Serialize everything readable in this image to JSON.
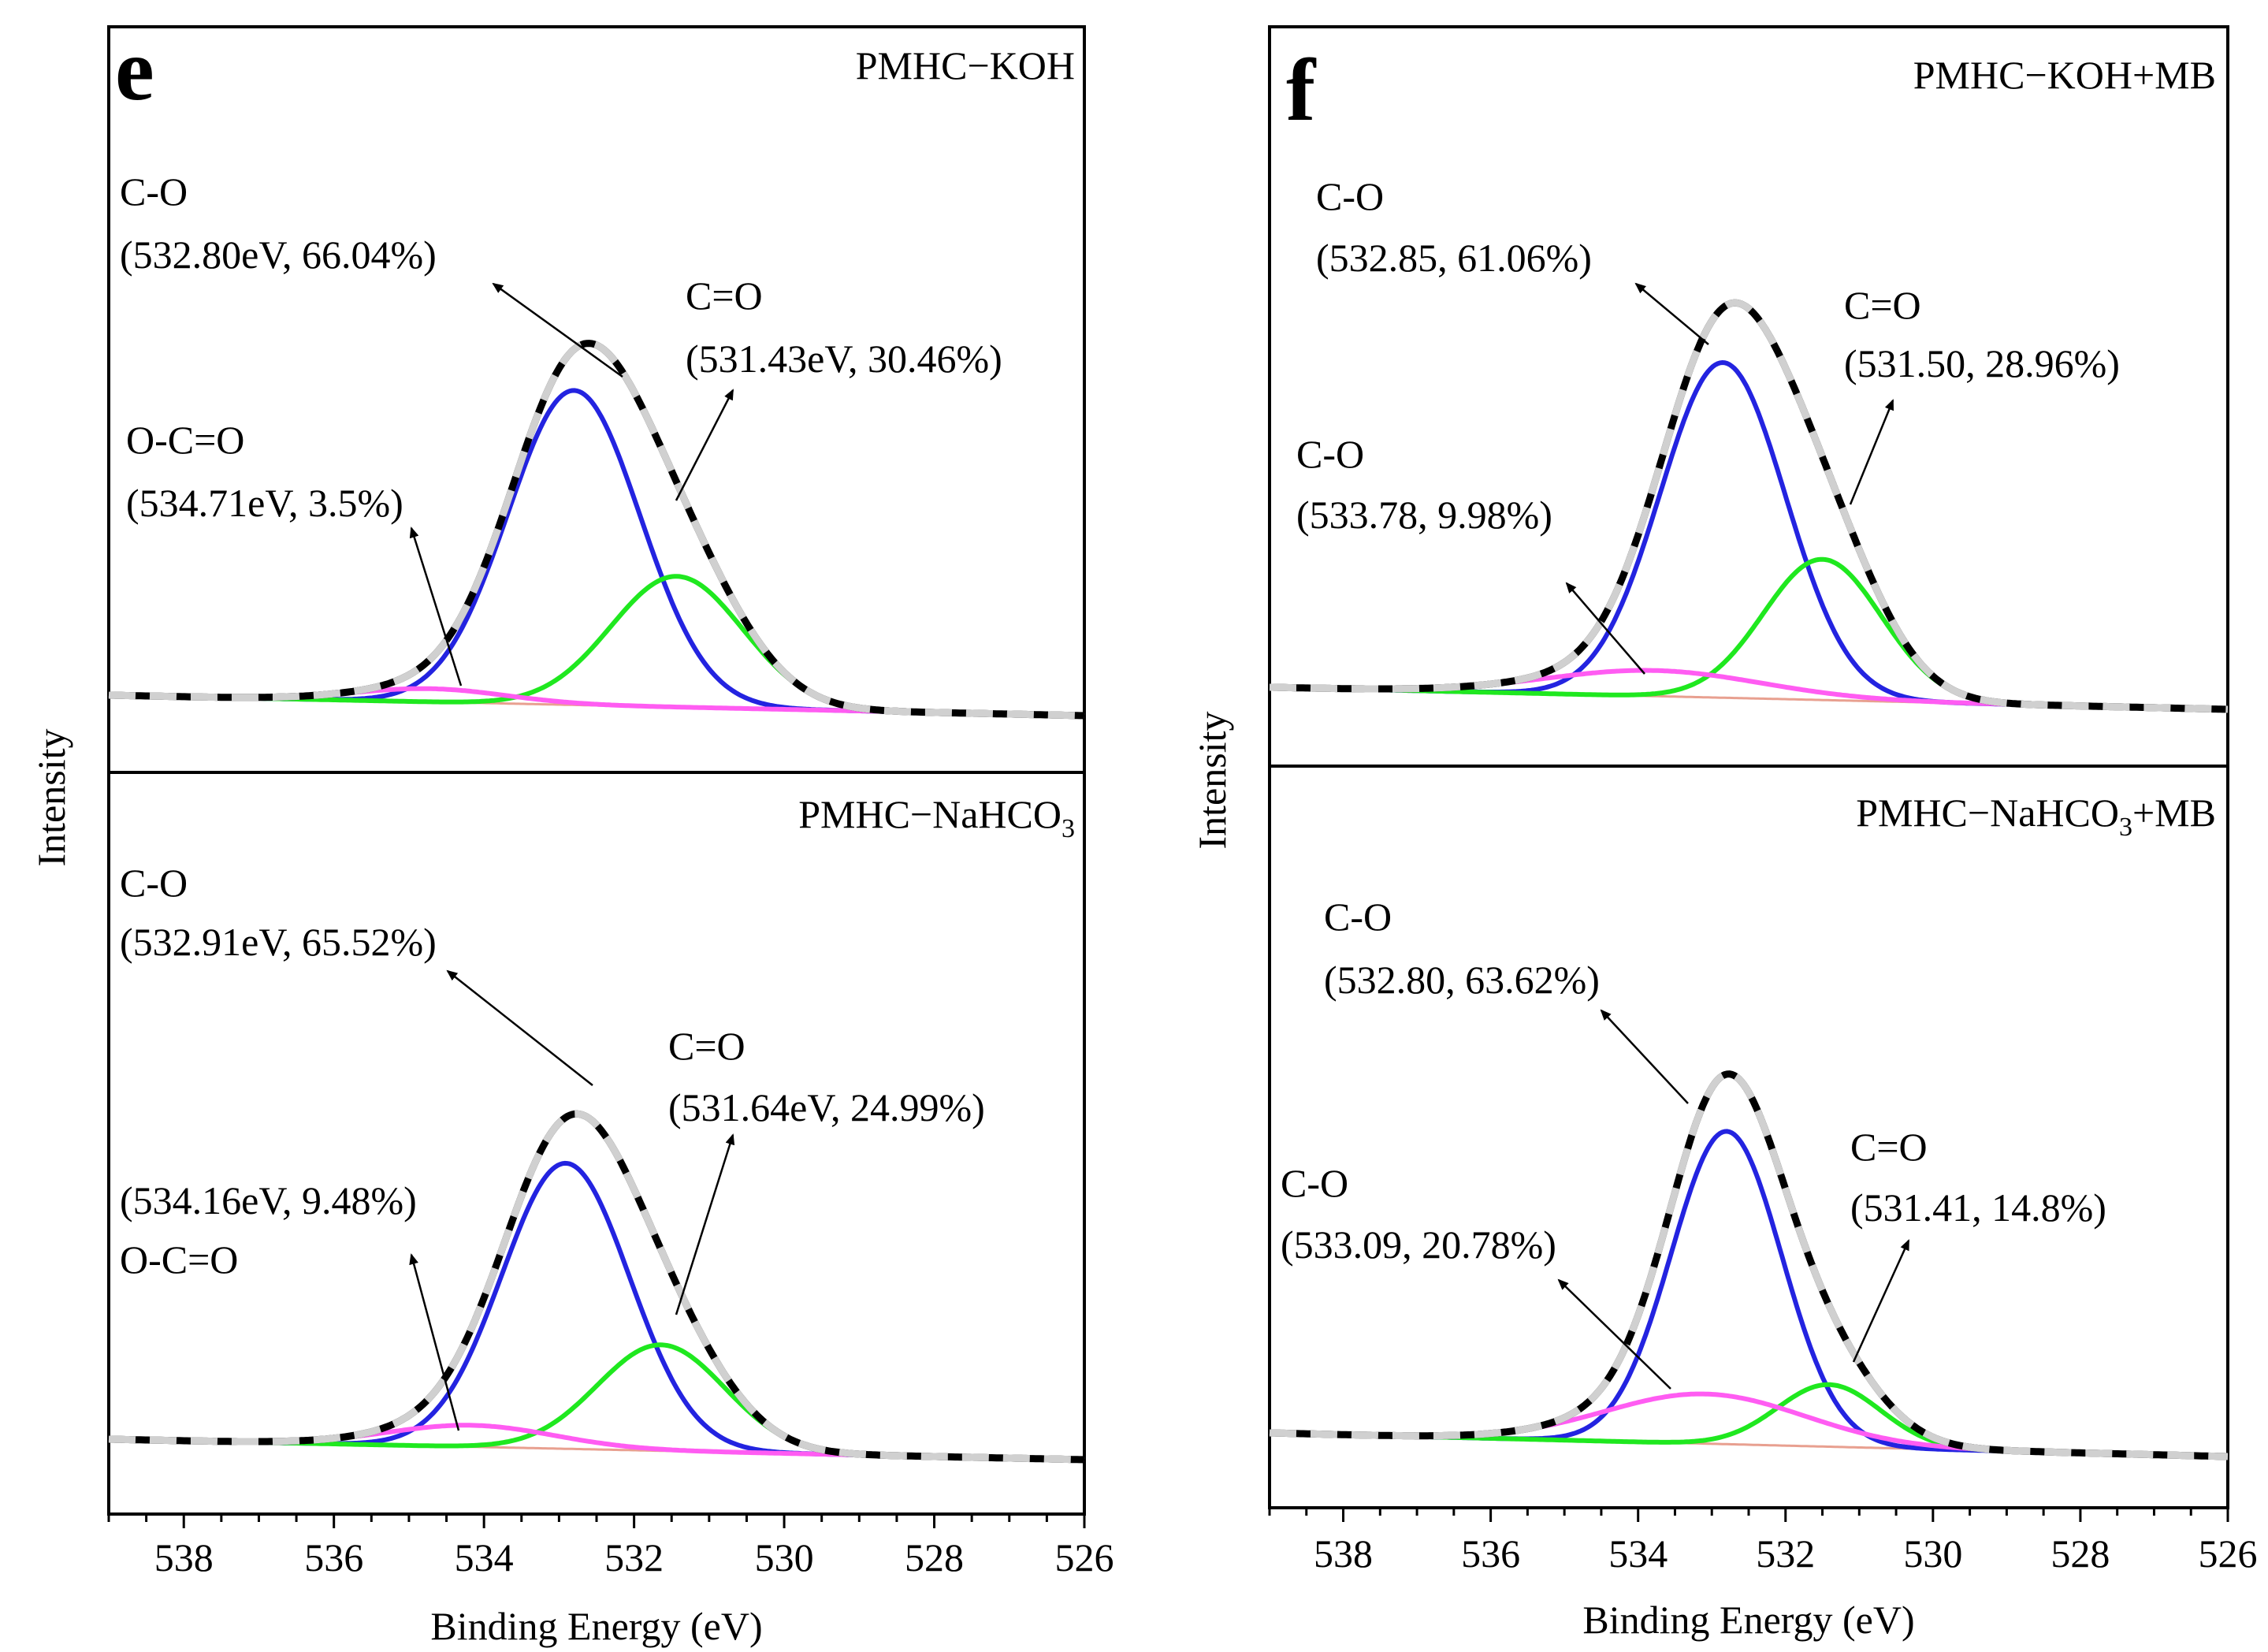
{
  "figure": {
    "x_axis_label": "Binding Energy (eV)",
    "y_axis_label": "Intensity",
    "x_ticks": [
      "538",
      "536",
      "534",
      "532",
      "530",
      "528",
      "526"
    ]
  },
  "chart_data": [
    {
      "type": "line",
      "panel_letter": "e",
      "title": "PMHC−KOH",
      "xlabel": "Binding Energy (eV)",
      "ylabel": "Intensity",
      "xlim": [
        539,
        526
      ],
      "baseline": {
        "start": 1.7,
        "end": 0.0
      },
      "series": [
        {
          "name": "C-O",
          "center": 532.8,
          "height": 38.0,
          "sigma": 0.88
        },
        {
          "name": "C=O",
          "center": 531.43,
          "height": 15.8,
          "sigma": 0.88
        },
        {
          "name": "O-C=O",
          "center": 534.71,
          "height": 1.6,
          "sigma": 1.0
        }
      ],
      "annotations": [
        {
          "name": "C-O",
          "line1": "C-O",
          "line2": "(532.80eV, 66.04%)"
        },
        {
          "name": "C=O",
          "line1": "C=O",
          "line2": "(531.43eV, 30.46%)"
        },
        {
          "name": "O-C=O",
          "line1": "O-C=O",
          "line2": "(534.71eV, 3.5%)"
        }
      ]
    },
    {
      "type": "line",
      "panel_letter": "",
      "title": "PMHC−NaHCO",
      "title_sub": "3",
      "xlabel": "Binding Energy (eV)",
      "ylabel": "Intensity",
      "xlim": [
        539,
        526
      ],
      "baseline": {
        "start": 1.8,
        "end": 0.0
      },
      "series": [
        {
          "name": "C-O",
          "center": 532.91,
          "height": 34.5,
          "sigma": 0.85
        },
        {
          "name": "C=O",
          "center": 531.64,
          "height": 12.8,
          "sigma": 0.85
        },
        {
          "name": "O-C=O",
          "center": 534.16,
          "height": 2.6,
          "sigma": 1.1
        }
      ],
      "annotations": [
        {
          "name": "C-O",
          "line1": "C-O",
          "line2": "(532.91eV, 65.52%)"
        },
        {
          "name": "C=O",
          "line1": "C=O",
          "line2": "(531.64eV, 24.99%)"
        },
        {
          "name": "O-C=O",
          "line1": "(534.16eV, 9.48%)",
          "line2": "O-C=O"
        }
      ]
    },
    {
      "type": "line",
      "panel_letter": "f",
      "title": "PMHC−KOH+MB",
      "xlabel": "Binding Energy (eV)",
      "ylabel": "Intensity",
      "xlim": [
        539,
        526
      ],
      "baseline": {
        "start": 1.7,
        "end": 0.0
      },
      "series": [
        {
          "name": "C-O",
          "center": 532.85,
          "height": 40.5,
          "sigma": 0.85
        },
        {
          "name": "C=O",
          "center": 531.5,
          "height": 17.0,
          "sigma": 0.8
        },
        {
          "name": "C-O",
          "center": 533.78,
          "height": 3.1,
          "sigma": 1.45
        }
      ],
      "annotations": [
        {
          "name": "C-O",
          "line1": "C-O",
          "line2": "(532.85, 61.06%)"
        },
        {
          "name": "C=O",
          "line1": "C=O",
          "line2": "(531.50, 28.96%)"
        },
        {
          "name": "C-O",
          "line1": "C-O",
          "line2": "(533.78, 9.98%)"
        }
      ]
    },
    {
      "type": "line",
      "panel_letter": "",
      "title": "PMHC−NaHCO",
      "title_sub": "3",
      "title_tail": "+MB",
      "xlabel": "Binding Energy (eV)",
      "ylabel": "Intensity",
      "xlim": [
        539,
        526
      ],
      "baseline": {
        "start": 1.7,
        "end": 0.0
      },
      "series": [
        {
          "name": "C-O",
          "center": 532.8,
          "height": 37.8,
          "sigma": 0.75
        },
        {
          "name": "C=O",
          "center": 531.41,
          "height": 7.5,
          "sigma": 0.7
        },
        {
          "name": "C-O",
          "center": 533.09,
          "height": 6.0,
          "sigma": 1.35
        }
      ],
      "annotations": [
        {
          "name": "C-O",
          "line1": "C-O",
          "line2": "(532.80, 63.62%)"
        },
        {
          "name": "C=O",
          "line1": "C=O",
          "line2": "(531.41, 14.8%)"
        },
        {
          "name": "C-O",
          "line1": "C-O",
          "line2": "(533.09, 20.78%)"
        }
      ]
    }
  ]
}
